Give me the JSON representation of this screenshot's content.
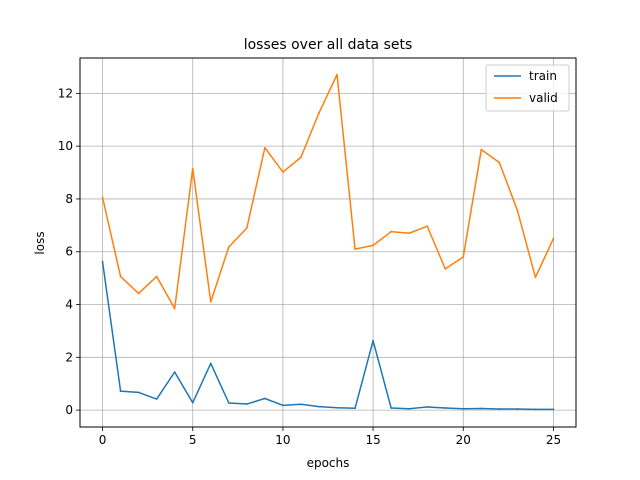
{
  "chart_data": {
    "type": "line",
    "title": "losses over all data sets",
    "xlabel": "epochs",
    "ylabel": "loss",
    "xlim": [
      -1.25,
      26.25
    ],
    "ylim": [
      -0.64,
      13.34
    ],
    "xticks": [
      0,
      5,
      10,
      15,
      20,
      25
    ],
    "yticks": [
      0,
      2,
      4,
      6,
      8,
      10,
      12
    ],
    "grid": true,
    "legend_position": "top-right",
    "x": [
      0,
      1,
      2,
      3,
      4,
      5,
      6,
      7,
      8,
      9,
      10,
      11,
      12,
      13,
      14,
      15,
      16,
      17,
      18,
      19,
      20,
      21,
      22,
      23,
      24,
      25
    ],
    "series": [
      {
        "name": "train",
        "color": "#1f77b4",
        "values": [
          5.62,
          0.72,
          0.67,
          0.42,
          1.44,
          0.28,
          1.77,
          0.27,
          0.23,
          0.44,
          0.18,
          0.22,
          0.13,
          0.09,
          0.07,
          2.63,
          0.08,
          0.05,
          0.12,
          0.08,
          0.05,
          0.06,
          0.04,
          0.04,
          0.03,
          0.03
        ]
      },
      {
        "name": "valid",
        "color": "#ff7f0e",
        "values": [
          8.06,
          5.06,
          4.42,
          5.06,
          3.85,
          9.15,
          4.1,
          6.18,
          6.9,
          9.94,
          9.02,
          9.58,
          11.26,
          12.71,
          6.1,
          6.24,
          6.76,
          6.7,
          6.97,
          5.35,
          5.8,
          9.87,
          9.38,
          7.57,
          5.03,
          6.5
        ]
      }
    ]
  }
}
